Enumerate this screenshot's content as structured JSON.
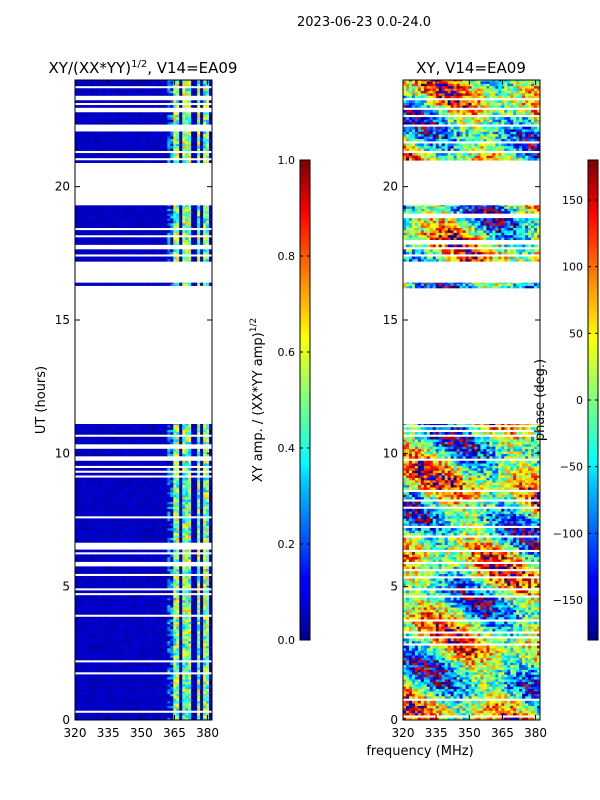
{
  "figure": {
    "suptitle": "2023-06-23 0.0-24.0",
    "shared_xlabel": "frequency (MHz)"
  },
  "chart_data": [
    {
      "type": "heatmap",
      "title_main": "XY/(XX*YY)",
      "title_exp": "1/2",
      "title_rest": ", V14=EA09",
      "xlabel": "",
      "ylabel": "UT (hours)",
      "xlim": [
        320,
        382
      ],
      "ylim": [
        0,
        24
      ],
      "xticks": [
        320,
        335,
        350,
        365,
        380
      ],
      "yticks": [
        0,
        5,
        10,
        15,
        20
      ],
      "colorbar": {
        "label_main": "XY amp. / (XX*YY amp)",
        "label_exp": "1/2",
        "range": [
          0.0,
          1.0
        ],
        "ticks": [
          "0.0",
          "0.2",
          "0.4",
          "0.6",
          "0.8",
          "1.0"
        ],
        "tick_values": [
          0.0,
          0.2,
          0.4,
          0.6,
          0.8,
          1.0
        ]
      },
      "data_time_ranges_hours": [
        [
          0.0,
          11.1
        ],
        [
          16.2,
          16.4
        ],
        [
          17.2,
          19.3
        ],
        [
          20.9,
          24.0
        ]
      ],
      "bright_freq_bands_mhz": [
        [
          364,
          367
        ],
        [
          369,
          372
        ],
        [
          375,
          377
        ],
        [
          378,
          381
        ]
      ]
    },
    {
      "type": "heatmap",
      "title_main": "XY, V14=EA09",
      "xlabel": "frequency (MHz)",
      "ylabel": "",
      "xlim": [
        320,
        382
      ],
      "ylim": [
        0,
        24
      ],
      "xticks": [
        320,
        335,
        350,
        365,
        380
      ],
      "yticks": [
        0,
        5,
        10,
        15,
        20
      ],
      "colorbar": {
        "label_main": "phase (deg.)",
        "range": [
          -180,
          180
        ],
        "ticks": [
          "−150",
          "−100",
          "−50",
          "0",
          "50",
          "100",
          "150"
        ],
        "tick_values": [
          -150,
          -100,
          -50,
          0,
          50,
          100,
          150
        ]
      },
      "data_time_ranges_hours": [
        [
          0.0,
          11.1
        ],
        [
          16.2,
          16.4
        ],
        [
          17.2,
          19.3
        ],
        [
          20.9,
          24.0
        ]
      ]
    }
  ]
}
